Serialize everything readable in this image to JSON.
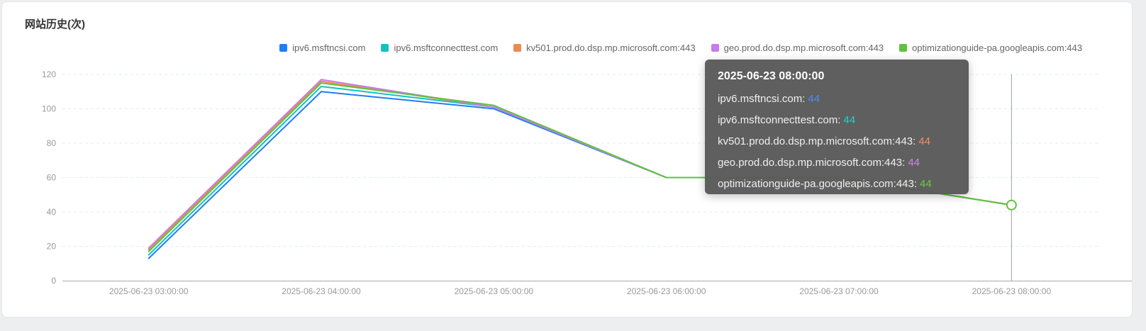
{
  "page": {
    "title": "网站历史(次)"
  },
  "chart_data": {
    "type": "line",
    "title": "网站历史(次)",
    "x": [
      "2025-06-23 03:00:00",
      "2025-06-23 04:00:00",
      "2025-06-23 05:00:00",
      "2025-06-23 06:00:00",
      "2025-06-23 07:00:00",
      "2025-06-23 08:00:00"
    ],
    "xlabel": "",
    "ylabel": "",
    "ylim": [
      0,
      120
    ],
    "y_ticks": [
      0,
      20,
      40,
      60,
      80,
      100,
      120
    ],
    "grid": "horizontal-dashed",
    "legend_position": "top-right",
    "series": [
      {
        "name": "ipv6.msftncsi.com",
        "color": "#1e7ff2",
        "values": [
          13,
          110,
          100,
          60,
          60,
          44
        ]
      },
      {
        "name": "ipv6.msftconnecttest.com",
        "color": "#13c2c2",
        "values": [
          15,
          113,
          101,
          60,
          60,
          44
        ]
      },
      {
        "name": "kv501.prod.do.dsp.mp.microsoft.com:443",
        "color": "#ee8a50",
        "values": [
          18,
          116,
          101,
          60,
          60,
          44
        ]
      },
      {
        "name": "geo.prod.do.dsp.mp.microsoft.com:443",
        "color": "#c77ceb",
        "values": [
          19,
          117,
          101,
          60,
          60,
          44
        ]
      },
      {
        "name": "optimizationguide-pa.googleapis.com:443",
        "color": "#5fc23d",
        "values": [
          17,
          115,
          102,
          60,
          60,
          44
        ]
      }
    ],
    "hover_marker": {
      "x_index": 5,
      "series_index": 4,
      "value": 44
    }
  },
  "tooltip": {
    "header": "2025-06-23 08:00:00",
    "rows": [
      {
        "name": "ipv6.msftncsi.com",
        "value": "44",
        "color": "#4a8cf5"
      },
      {
        "name": "ipv6.msftconnecttest.com",
        "value": "44",
        "color": "#26d0c9"
      },
      {
        "name": "kv501.prod.do.dsp.mp.microsoft.com:443",
        "value": "44",
        "color": "#f0925c"
      },
      {
        "name": "geo.prod.do.dsp.mp.microsoft.com:443",
        "value": "44",
        "color": "#cd84f0"
      },
      {
        "name": "optimizationguide-pa.googleapis.com:443",
        "value": "44",
        "color": "#6cc94a"
      }
    ]
  }
}
